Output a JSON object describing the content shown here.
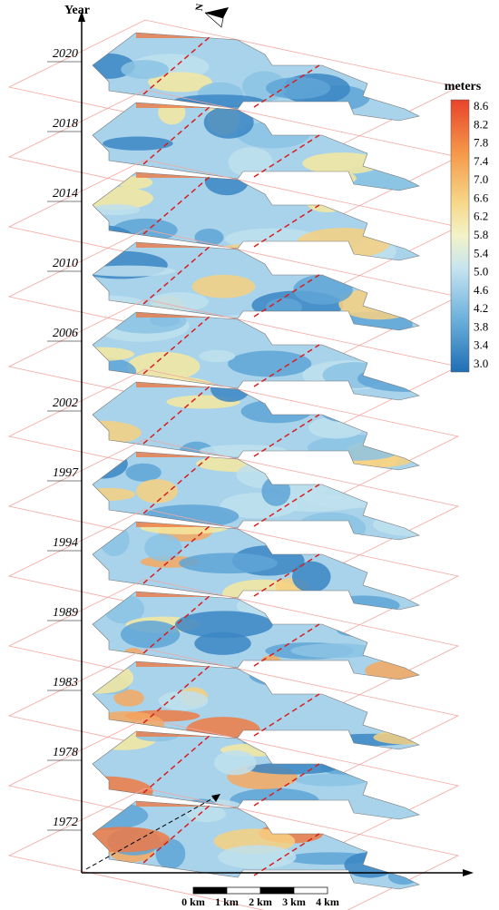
{
  "axis_label": "Year",
  "years": [
    "2020",
    "2018",
    "2014",
    "2010",
    "2006",
    "2002",
    "1997",
    "1994",
    "1989",
    "1983",
    "1978",
    "1972"
  ],
  "north_label": "N",
  "colorbar": {
    "title": "meters",
    "ticks": [
      "8.6",
      "8.2",
      "7.8",
      "7.4",
      "7.0",
      "6.6",
      "6.2",
      "5.8",
      "5.4",
      "5.0",
      "4.6",
      "4.2",
      "3.8",
      "3.4",
      "3.0"
    ]
  },
  "scale_bar": [
    "0 km",
    "1 km",
    "2 km",
    "3 km",
    "4 km"
  ]
}
